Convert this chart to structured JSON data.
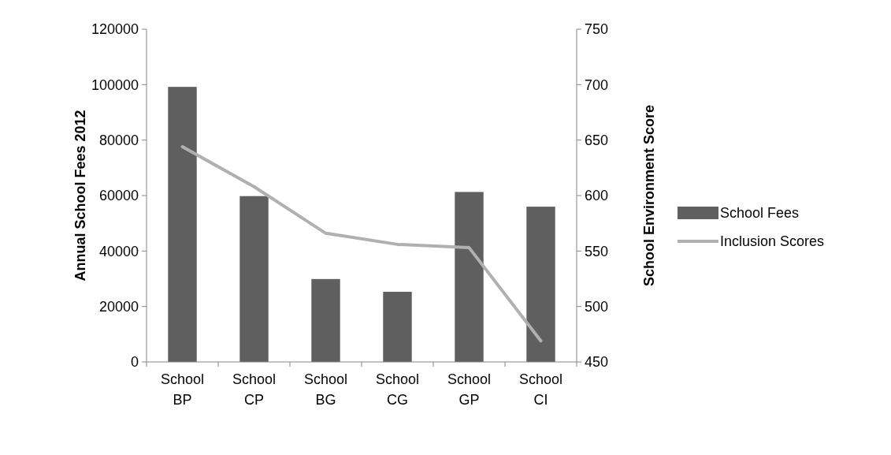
{
  "chart_data": {
    "type": "bar",
    "categories": [
      "School BP",
      "School CP",
      "School BG",
      "School CG",
      "School GP",
      "School CI"
    ],
    "series": [
      {
        "name": "School Fees",
        "color": "#5f5f5f",
        "values": [
          99200,
          59800,
          29900,
          25300,
          61300,
          56000
        ]
      },
      {
        "name": "Inclusion Scores",
        "type": "line",
        "axis": "y2",
        "color": "#b0b0b0",
        "values": [
          644,
          608,
          566,
          556,
          553,
          469
        ]
      }
    ],
    "ylabel": "Annual School Fees 2012",
    "y2label": "School Environment Score",
    "ylim": [
      0,
      120000
    ],
    "yticks": [
      0,
      20000,
      40000,
      60000,
      80000,
      100000,
      120000
    ],
    "y2lim": [
      450,
      750
    ],
    "y2ticks": [
      450,
      500,
      550,
      600,
      650,
      700,
      750
    ],
    "grid": false,
    "legend": "right"
  }
}
